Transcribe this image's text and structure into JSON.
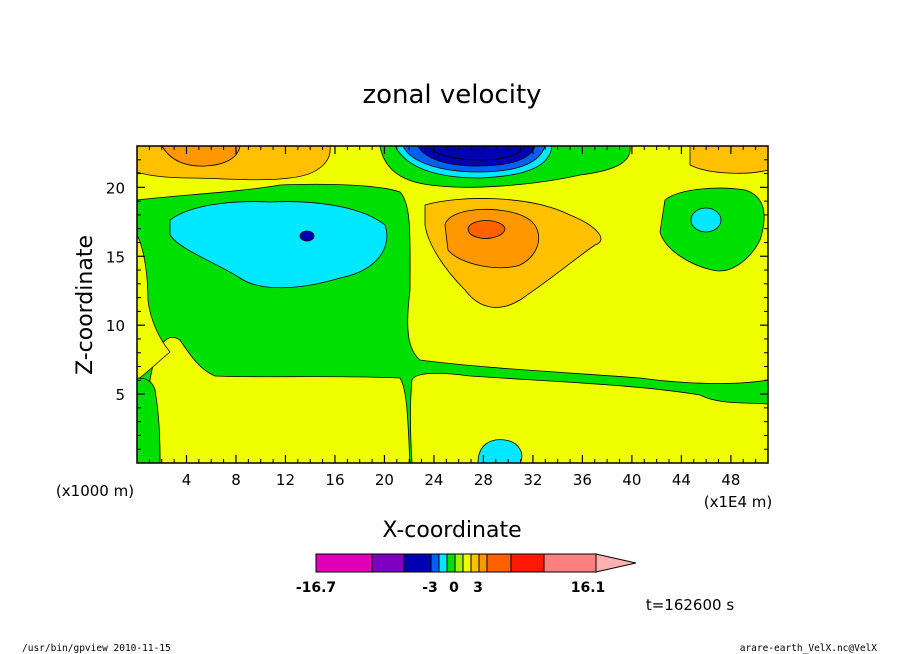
{
  "chart_data": {
    "type": "contour",
    "title": "zonal velocity",
    "xlabel": "X-coordinate",
    "ylabel": "Z-coordinate",
    "x_scale_note": "(x1E4 m)",
    "y_scale_note": "(x1000 m)",
    "xlim": [
      0,
      51
    ],
    "ylim": [
      0,
      23
    ],
    "x_ticks": [
      4,
      8,
      12,
      16,
      20,
      24,
      28,
      32,
      36,
      40,
      44,
      48
    ],
    "y_ticks": [
      5,
      10,
      15,
      20
    ],
    "grid": false,
    "levels": [
      -16.7,
      -11.0,
      -7.0,
      -3.0,
      -2.0,
      -1.0,
      0.0,
      1.0,
      2.0,
      3.0,
      4.0,
      7.0,
      10.0,
      16.1
    ],
    "palette": [
      "#e000b8",
      "#8000c0",
      "#0000b0",
      "#0060f0",
      "#00e8ff",
      "#00e000",
      "#a0f000",
      "#f0ff00",
      "#ffc000",
      "#ff9800",
      "#ff6000",
      "#ff1800",
      "#ff8080"
    ],
    "colorbar_ticks": [
      {
        "value": -16.7,
        "label": "-16.7"
      },
      {
        "value": -3.0,
        "label": "-3"
      },
      {
        "value": 0.0,
        "label": "0"
      },
      {
        "value": 3.0,
        "label": "3"
      },
      {
        "value": 16.1,
        "label": "16.1"
      }
    ],
    "features": [
      {
        "type": "negative jet core",
        "x": 27,
        "z": 22.5,
        "min_value": -11.0
      },
      {
        "type": "negative anomaly",
        "x": 14,
        "z": 16.5,
        "min_value": -5.0
      },
      {
        "type": "positive anomaly",
        "x": 28,
        "z": 17,
        "max_value": 10.0
      },
      {
        "type": "negative anomaly",
        "x": 46.5,
        "z": 17.5,
        "min_value": -3.0
      },
      {
        "type": "positive anomaly",
        "x": 5,
        "z": 22.5,
        "max_value": 5.0
      },
      {
        "type": "negative anomaly",
        "x": 29,
        "z": 1,
        "min_value": -3.0
      }
    ]
  },
  "time_label": "t=162600 s",
  "footer_left": "/usr/bin/gpview   2010-11-15",
  "footer_right": "arare-earth_VelX.nc@VelX"
}
